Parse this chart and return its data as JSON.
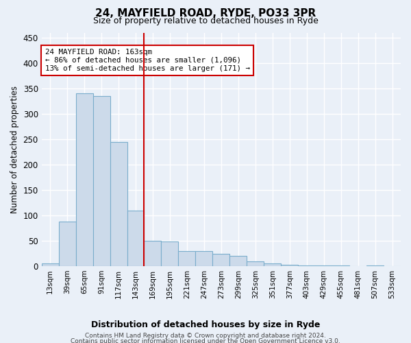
{
  "title": "24, MAYFIELD ROAD, RYDE, PO33 3PR",
  "subtitle": "Size of property relative to detached houses in Ryde",
  "xlabel": "Distribution of detached houses by size in Ryde",
  "ylabel": "Number of detached properties",
  "bar_color": "#ccdaea",
  "bar_edge_color": "#7aadcc",
  "categories": [
    "13sqm",
    "39sqm",
    "65sqm",
    "91sqm",
    "117sqm",
    "143sqm",
    "169sqm",
    "195sqm",
    "221sqm",
    "247sqm",
    "273sqm",
    "299sqm",
    "325sqm",
    "351sqm",
    "377sqm",
    "403sqm",
    "429sqm",
    "455sqm",
    "481sqm",
    "507sqm",
    "533sqm"
  ],
  "values": [
    5,
    88,
    340,
    335,
    245,
    110,
    50,
    48,
    30,
    30,
    25,
    20,
    9,
    6,
    3,
    2,
    1,
    1,
    0,
    1,
    0
  ],
  "ylim": [
    0,
    460
  ],
  "yticks": [
    0,
    50,
    100,
    150,
    200,
    250,
    300,
    350,
    400,
    450
  ],
  "vline_index": 6,
  "vline_color": "#cc0000",
  "annotation_line1": "24 MAYFIELD ROAD: 163sqm",
  "annotation_line2": "← 86% of detached houses are smaller (1,096)",
  "annotation_line3": "13% of semi-detached houses are larger (171) →",
  "annotation_box_color": "#ffffff",
  "annotation_box_edge": "#cc0000",
  "footer1": "Contains HM Land Registry data © Crown copyright and database right 2024.",
  "footer2": "Contains public sector information licensed under the Open Government Licence v3.0.",
  "background_color": "#eaf0f8",
  "plot_background": "#eaf0f8",
  "grid_color": "#ffffff"
}
